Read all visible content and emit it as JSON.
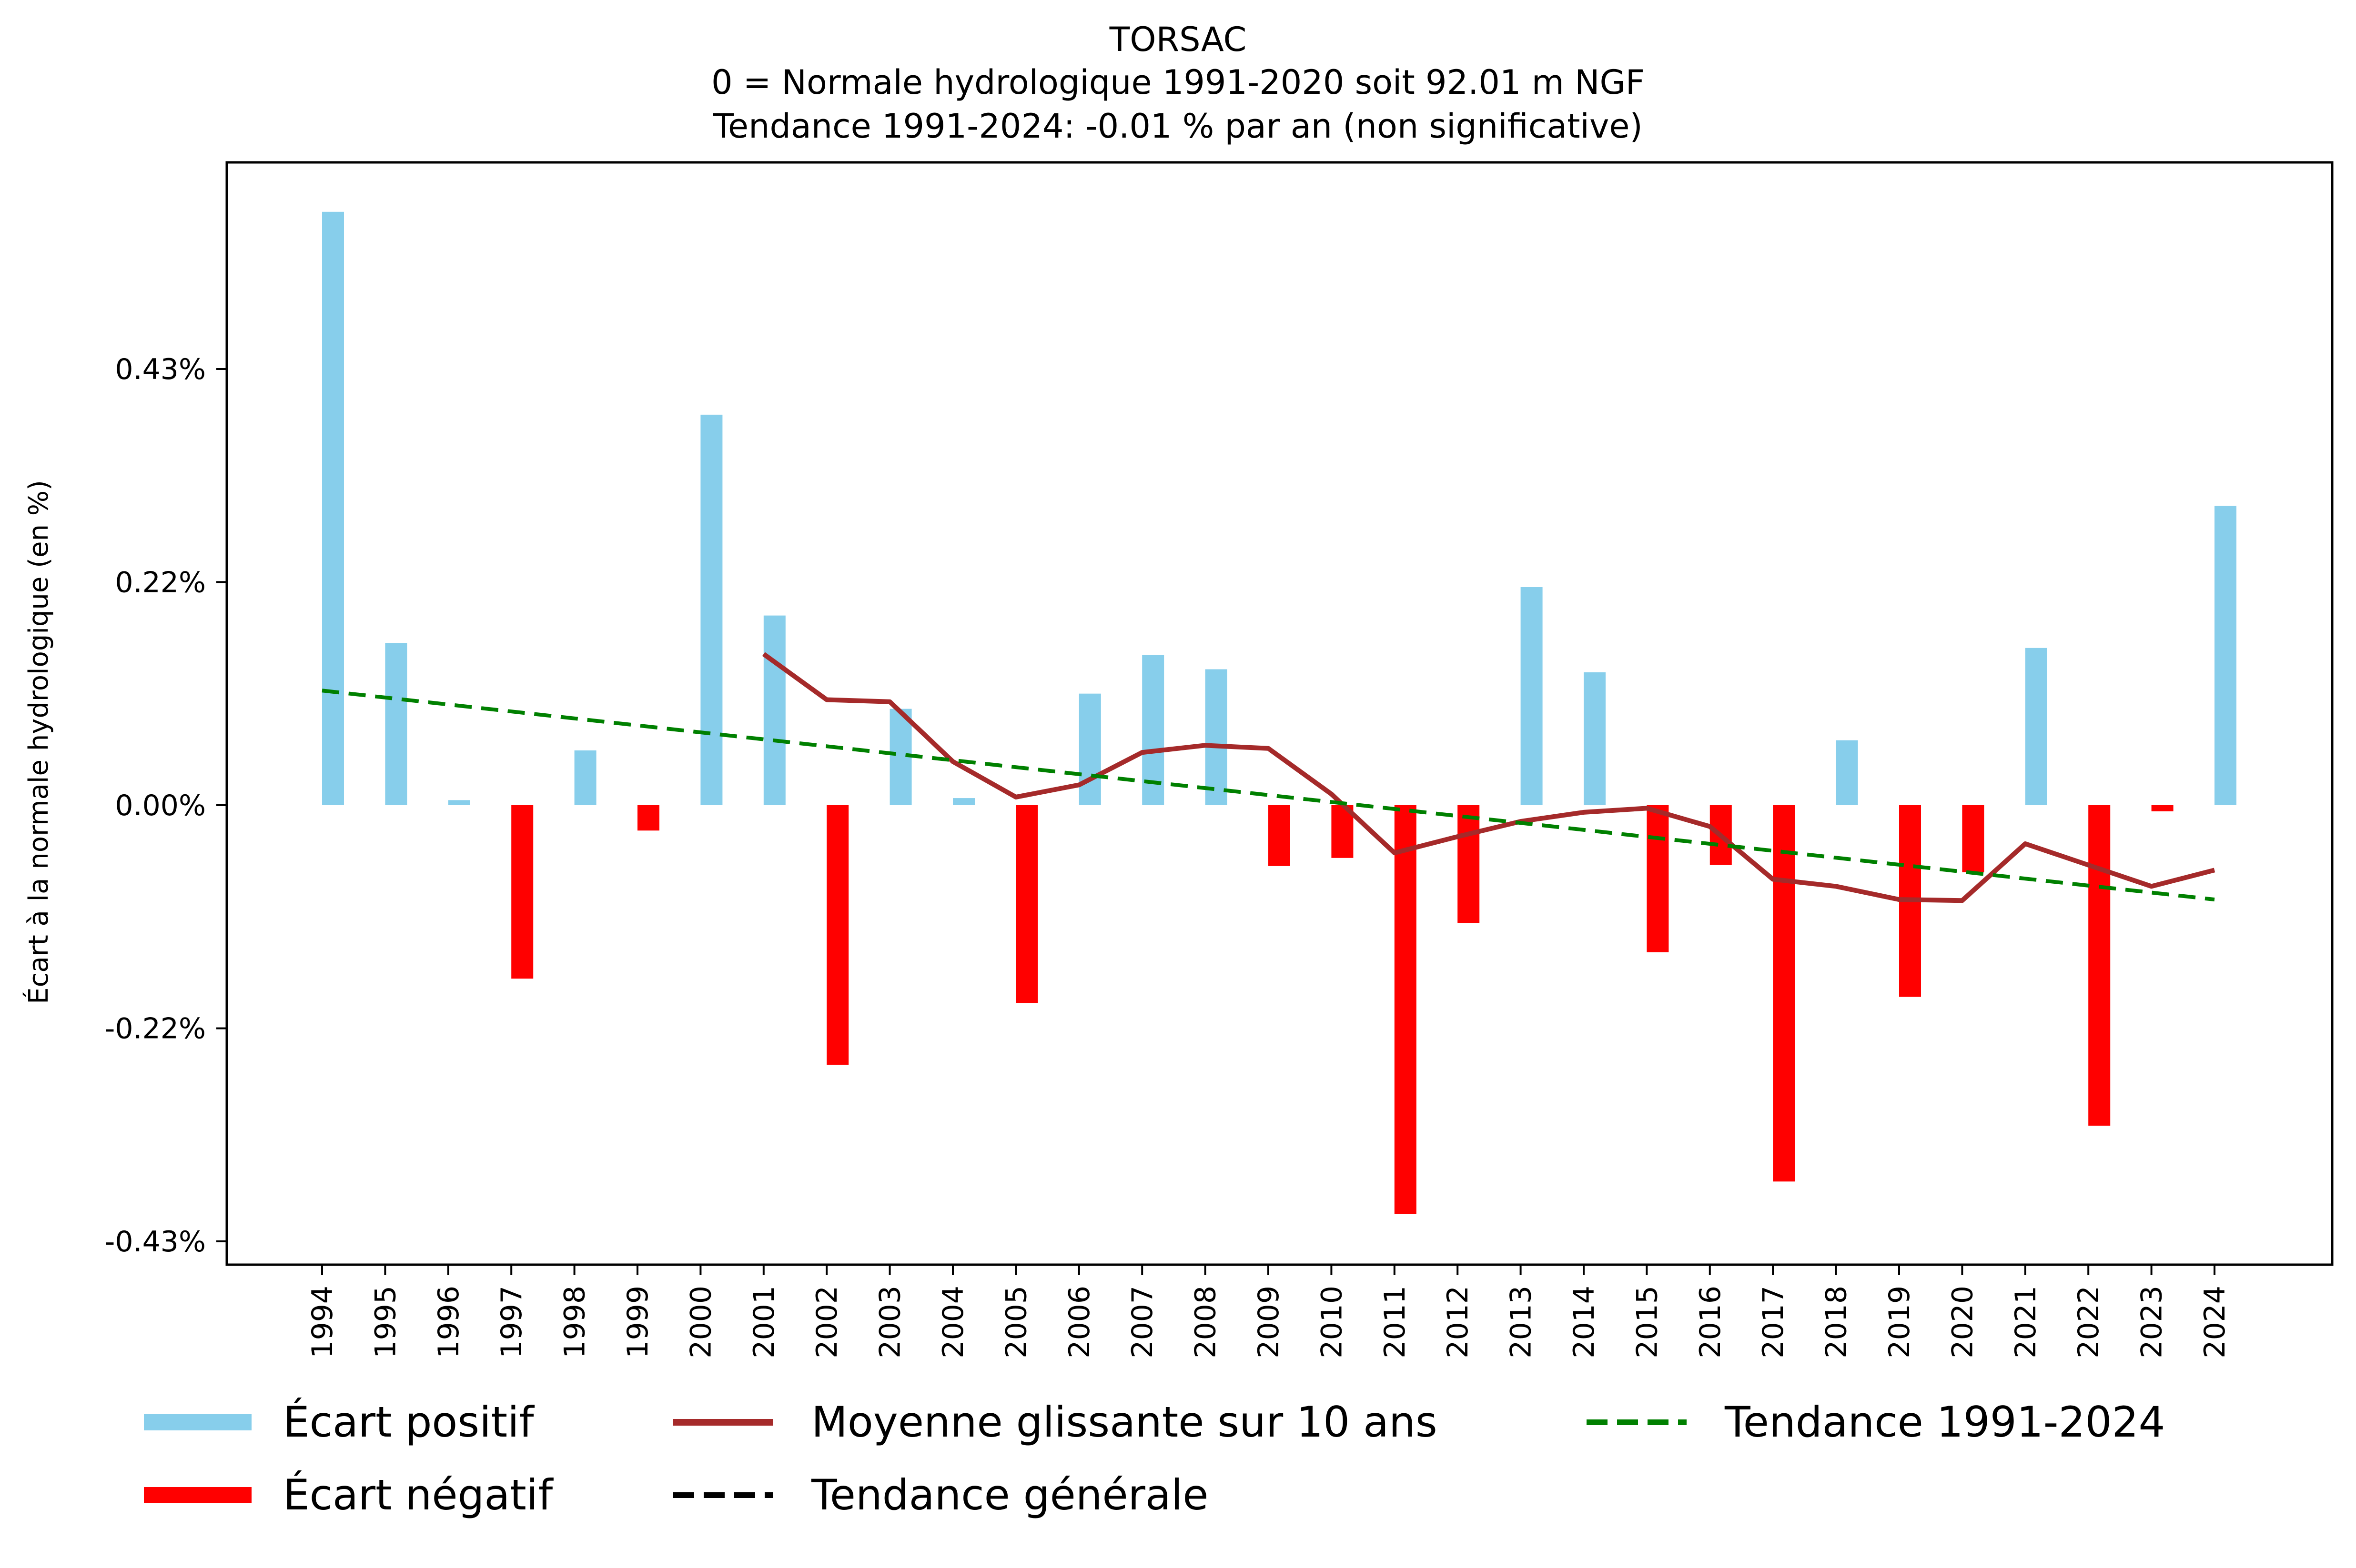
{
  "chart_data": {
    "type": "bar",
    "title": "TORSAC",
    "subtitle_lines": [
      "0 = Normale hydrologique 1991-2020 soit 92.01 m NGF",
      "Tendance 1991-2024: -0.01 % par an (non significative)"
    ],
    "xlabel": "",
    "ylabel": "Écart à la normale hydrologique (en %)",
    "ylim": [
      -0.46,
      0.69
    ],
    "yticks": [
      0.43,
      0.22,
      0.0,
      -0.22,
      -0.43
    ],
    "ytick_labels": [
      "0.43%",
      "0.22%",
      "0.00%",
      "-0.22%",
      "-0.43%"
    ],
    "grid": false,
    "categories": [
      "1994",
      "1995",
      "1996",
      "1997",
      "1998",
      "1999",
      "2000",
      "2001",
      "2002",
      "2003",
      "2004",
      "2005",
      "2006",
      "2007",
      "2008",
      "2009",
      "2010",
      "2011",
      "2012",
      "2013",
      "2014",
      "2015",
      "2016",
      "2017",
      "2018",
      "2019",
      "2020",
      "2021",
      "2022",
      "2023",
      "2024"
    ],
    "values": [
      0.585,
      0.16,
      0.005,
      -0.171,
      0.054,
      -0.025,
      0.385,
      0.187,
      -0.256,
      0.095,
      0.007,
      -0.195,
      0.11,
      0.148,
      0.134,
      -0.06,
      -0.052,
      -0.403,
      -0.116,
      0.215,
      0.131,
      -0.145,
      -0.059,
      -0.371,
      0.064,
      -0.189,
      -0.066,
      0.155,
      -0.316,
      -0.006,
      0.295
    ],
    "series": [
      {
        "name": "Moyenne glissante sur 10 ans",
        "type": "line",
        "color": "#a52a2a",
        "x": [
          "2001",
          "2002",
          "2003",
          "2004",
          "2005",
          "2006",
          "2007",
          "2008",
          "2009",
          "2010",
          "2011",
          "2012",
          "2013",
          "2014",
          "2015",
          "2016",
          "2017",
          "2018",
          "2019",
          "2020",
          "2021",
          "2022",
          "2023",
          "2024"
        ],
        "values": [
          0.149,
          0.104,
          0.102,
          0.043,
          0.008,
          0.02,
          0.052,
          0.059,
          0.056,
          0.011,
          -0.047,
          -0.031,
          -0.016,
          -0.007,
          -0.003,
          -0.021,
          -0.073,
          -0.08,
          -0.093,
          -0.094,
          -0.038,
          -0.059,
          -0.08,
          -0.064
        ]
      },
      {
        "name": "Tendance 1991-2024",
        "type": "line",
        "style": "dashed",
        "color": "#008000",
        "x": [
          "1994",
          "2024"
        ],
        "values": [
          0.113,
          -0.093
        ]
      }
    ],
    "legend": {
      "placement": "bottom",
      "entries": [
        {
          "label": "Écart positif",
          "kind": "patch",
          "color": "#87ceeb"
        },
        {
          "label": "Écart négatif",
          "kind": "patch",
          "color": "#ff0000"
        },
        {
          "label": "Moyenne glissante sur 10 ans",
          "kind": "line",
          "color": "#a52a2a"
        },
        {
          "label": "Tendance générale",
          "kind": "dashed",
          "color": "#000000"
        },
        {
          "label": "Tendance 1991-2024",
          "kind": "dashed",
          "color": "#008000"
        }
      ]
    },
    "colors": {
      "positive": "#87ceeb",
      "negative": "#ff0000"
    }
  }
}
